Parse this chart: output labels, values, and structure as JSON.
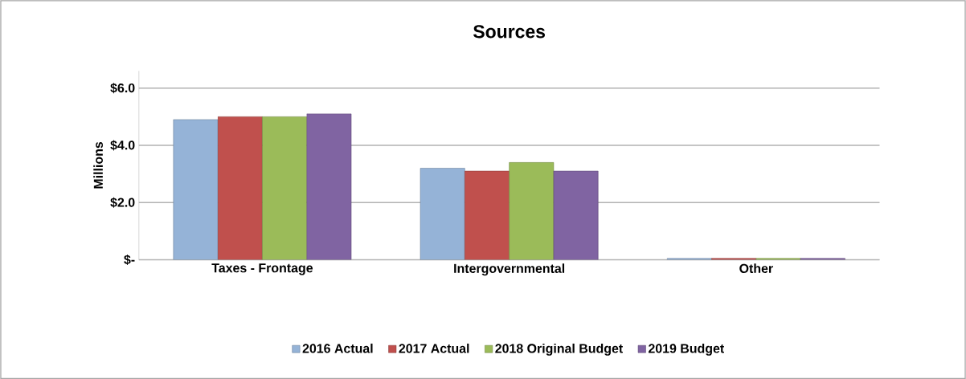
{
  "chart_data": {
    "type": "bar",
    "title": "Sources",
    "ylabel": "Millions",
    "categories": [
      "Taxes - Frontage",
      "Intergovernmental",
      "Other"
    ],
    "series": [
      {
        "name": "2016 Actual",
        "color": "#95b3d7",
        "values": [
          4.9,
          3.2,
          0.05
        ]
      },
      {
        "name": "2017 Actual",
        "color": "#c0504d",
        "values": [
          5.0,
          3.1,
          0.05
        ]
      },
      {
        "name": "2018 Original Budget",
        "color": "#9bbb59",
        "values": [
          5.0,
          3.4,
          0.05
        ]
      },
      {
        "name": "2019 Budget",
        "color": "#8064a2",
        "values": [
          5.1,
          3.1,
          0.05
        ]
      }
    ],
    "ylim": [
      0,
      6.6
    ],
    "yticks": [
      {
        "value": 0,
        "label": "$-"
      },
      {
        "value": 2,
        "label": "$2.0"
      },
      {
        "value": 4,
        "label": "$4.0"
      },
      {
        "value": 6,
        "label": "$6.0"
      }
    ],
    "grid": "y",
    "legend": "bottom"
  }
}
